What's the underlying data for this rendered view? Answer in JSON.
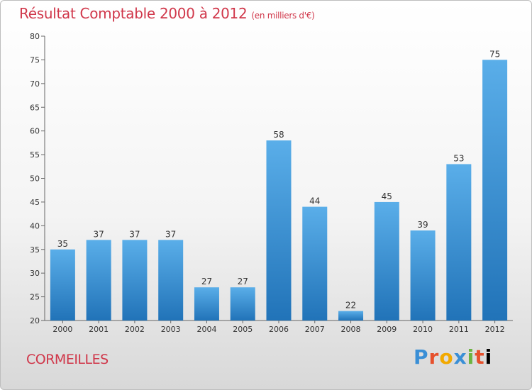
{
  "header": {
    "title": "Résultat Comptable 2000 à 2012",
    "subtitle": "(en milliers d'€)"
  },
  "footer": {
    "commune": "CORMEILLES",
    "logo_letters": [
      "P",
      "r",
      "o",
      "x",
      "i",
      "t",
      "i"
    ]
  },
  "chart_data": {
    "type": "bar",
    "title": "Résultat Comptable 2000 à 2012",
    "subtitle": "(en milliers d'€)",
    "categories": [
      "2000",
      "2001",
      "2002",
      "2003",
      "2004",
      "2005",
      "2006",
      "2007",
      "2008",
      "2009",
      "2010",
      "2011",
      "2012"
    ],
    "values": [
      35,
      37,
      37,
      37,
      27,
      27,
      58,
      44,
      22,
      45,
      39,
      53,
      75
    ],
    "ylim": [
      20,
      80
    ],
    "yticks": [
      20,
      25,
      30,
      35,
      40,
      45,
      50,
      55,
      60,
      65,
      70,
      75,
      80
    ],
    "grid": false,
    "bar_color": "#3b8fd6"
  }
}
